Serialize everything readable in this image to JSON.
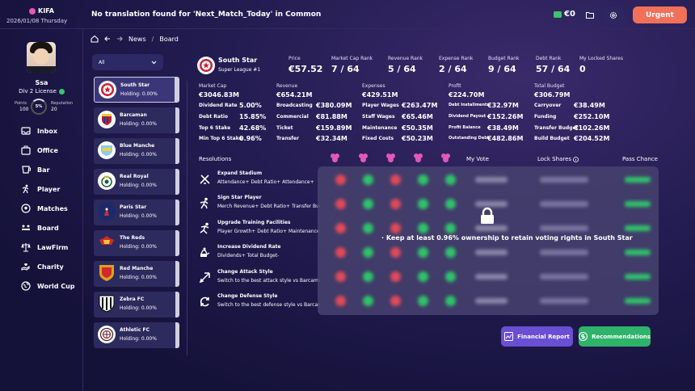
{
  "app": {
    "logo": "KIFA",
    "date": "2026/01/08 Thursday",
    "title": "No translation found for 'Next_Match_Today' in Common",
    "money": "€0",
    "urgent": "Urgent"
  },
  "player": {
    "name": "Ssa",
    "license": "Div 2 License",
    "points_label": "Points",
    "points": "100",
    "reputation_label": "Reputation",
    "reputation": "20",
    "ring": "5%"
  },
  "nav": [
    "Inbox",
    "Office",
    "Bar",
    "Player",
    "Matches",
    "Board",
    "LawFirm",
    "Charity",
    "World Cup"
  ],
  "breadcrumb": {
    "a": "News",
    "b": "Board"
  },
  "filter": {
    "value": "All"
  },
  "teams": [
    {
      "name": "South Star",
      "holding": "Holding: 0.00%"
    },
    {
      "name": "Barcaman",
      "holding": "Holding: 0.00%"
    },
    {
      "name": "Blue Manche",
      "holding": "Holding: 0.00%"
    },
    {
      "name": "Real Royal",
      "holding": "Holding: 0.00%"
    },
    {
      "name": "Paris Star",
      "holding": "Holding: 0.00%"
    },
    {
      "name": "The Reds",
      "holding": "Holding: 0.00%"
    },
    {
      "name": "Red Manche",
      "holding": "Holding: 0.00%"
    },
    {
      "name": "Zebra FC",
      "holding": "Holding: 0.00%"
    },
    {
      "name": "Athletic FC",
      "holding": "Holding: 0.00%"
    }
  ],
  "club": {
    "name": "South Star",
    "league": "Super League #1",
    "headers": [
      {
        "label": "Price",
        "value": "€57.52"
      },
      {
        "label": "Market Cap Rank",
        "value": "7 / 64"
      },
      {
        "label": "Revenue Rank",
        "value": "5 / 64"
      },
      {
        "label": "Expense Rank",
        "value": "2 / 64"
      },
      {
        "label": "Budget Rank",
        "value": "9 / 64"
      },
      {
        "label": "Debt Rank",
        "value": "57 / 64"
      },
      {
        "label": "My Locked Shares",
        "value": "0"
      }
    ]
  },
  "finance": {
    "market_cap": {
      "label": "Market Cap",
      "value": "€3046.83M",
      "rows": [
        [
          "Dividend Rate",
          "5.00%"
        ],
        [
          "Debt Ratio",
          "15.85%"
        ],
        [
          "Top 6  Stake",
          "42.68%"
        ],
        [
          "Min Top 6 Stake",
          "0.96%"
        ]
      ]
    },
    "revenue": {
      "label": "Revenue",
      "value": "€654.21M",
      "rows": [
        [
          "Broadcasting",
          "€380.09M"
        ],
        [
          "Commercial",
          "€81.88M"
        ],
        [
          "Ticket",
          "€159.89M"
        ],
        [
          "Transfer",
          "€32.34M"
        ]
      ]
    },
    "expenses": {
      "label": "Expenses",
      "value": "€429.51M",
      "rows": [
        [
          "Player Wages",
          "€263.47M"
        ],
        [
          "Staff Wages",
          "€65.46M"
        ],
        [
          "Maintenance",
          "€50.35M"
        ],
        [
          "Fixed Costs",
          "€50.23M"
        ]
      ]
    },
    "profit": {
      "label": "Profit",
      "value": "€224.70M",
      "rows": [
        [
          "Debt Installments",
          "€32.97M"
        ],
        [
          "Dividend Payout",
          "€152.26M"
        ],
        [
          "Profit Balance",
          "€38.49M"
        ],
        [
          "Outstanding Debt",
          "€482.86M"
        ]
      ]
    },
    "budget": {
      "label": "Total Budget",
      "value": "€306.79M",
      "rows": [
        [
          "Carryover",
          "€38.49M"
        ],
        [
          "Funding",
          "€252.10M"
        ],
        [
          "Transfer Budget",
          "€102.26M"
        ],
        [
          "Build Budget",
          "€204.52M"
        ]
      ]
    }
  },
  "resolutions": {
    "label": "Resolutions",
    "my_vote": "My Vote",
    "lock_shares": "Lock Shares",
    "pass_chance": "Pass Chance",
    "items": [
      {
        "title": "Expand Stadium",
        "desc": "Attendance+ Debt Ratio+ Attendance+",
        "icon": "stadium-icon"
      },
      {
        "title": "Sign Star Player",
        "desc": "Merch Revenue+ Debt Ratio+ Transfer Budget-",
        "icon": "player-icon"
      },
      {
        "title": "Upgrade Training Facilities",
        "desc": "Player Growth+ Debt Ratio+ Maintenance+",
        "icon": "training-icon"
      },
      {
        "title": "Increase Dividend Rate",
        "desc": "Dividends+ Total Budget-",
        "icon": "dividend-icon"
      },
      {
        "title": "Change Attack Style",
        "desc": "Switch to the best attack style vs Barcaman",
        "icon": "attack-icon"
      },
      {
        "title": "Change Defense Style",
        "desc": "Switch to the best defense style vs Barcaman",
        "icon": "defense-icon"
      }
    ],
    "lock_message": "· Keep at least 0.96% ownership to retain voting rights in South Star"
  },
  "buttons": {
    "financial_report": "Financial Report",
    "recommendations": "Recommendations"
  },
  "colors": {
    "accent": "#f0705a",
    "purple": "#6a4fd4",
    "green": "#2fb36a",
    "vote_red": "#e04a5a",
    "vote_green": "#2fc46a",
    "team_pink": "#e05ab8"
  }
}
